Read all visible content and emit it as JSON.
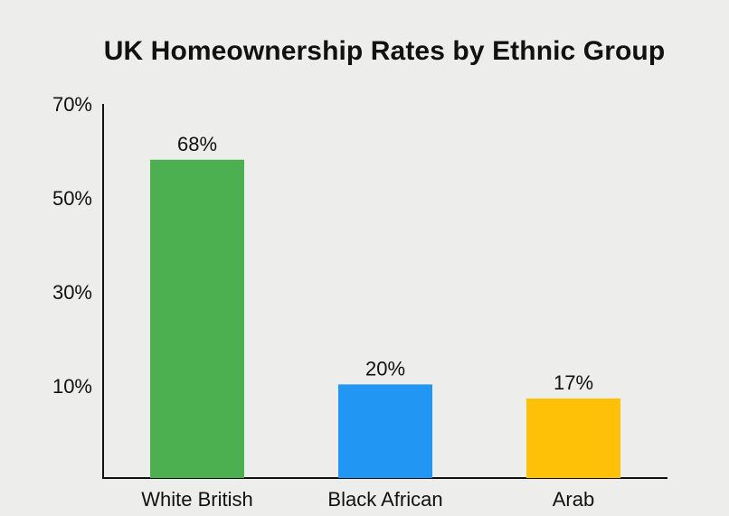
{
  "chart_data": {
    "type": "bar",
    "title": "UK Homeownership Rates by Ethnic Group",
    "xlabel": "",
    "ylabel": "",
    "categories": [
      "White British",
      "Black African",
      "Arab"
    ],
    "values": [
      68,
      20,
      17
    ],
    "data_labels": [
      "68%",
      "20%",
      "17%"
    ],
    "colors": [
      "#4caf50",
      "#2196f3",
      "#ffc107"
    ],
    "y_ticks": [
      10,
      30,
      50,
      70
    ],
    "y_tick_labels": [
      "10%",
      "30%",
      "50%",
      "70%"
    ],
    "ylim": [
      0,
      70
    ],
    "grid": false,
    "legend": "none"
  }
}
